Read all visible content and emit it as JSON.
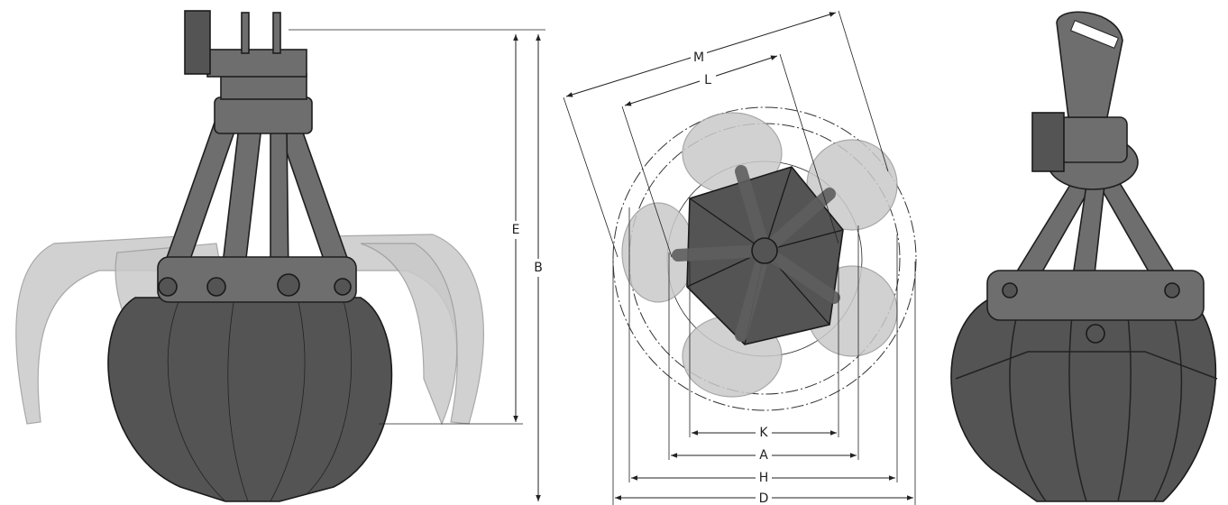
{
  "side_view": {
    "labels": [
      "E",
      "B"
    ]
  },
  "top_view": {
    "labels": [
      "M",
      "L",
      "K",
      "A",
      "H",
      "D"
    ]
  }
}
